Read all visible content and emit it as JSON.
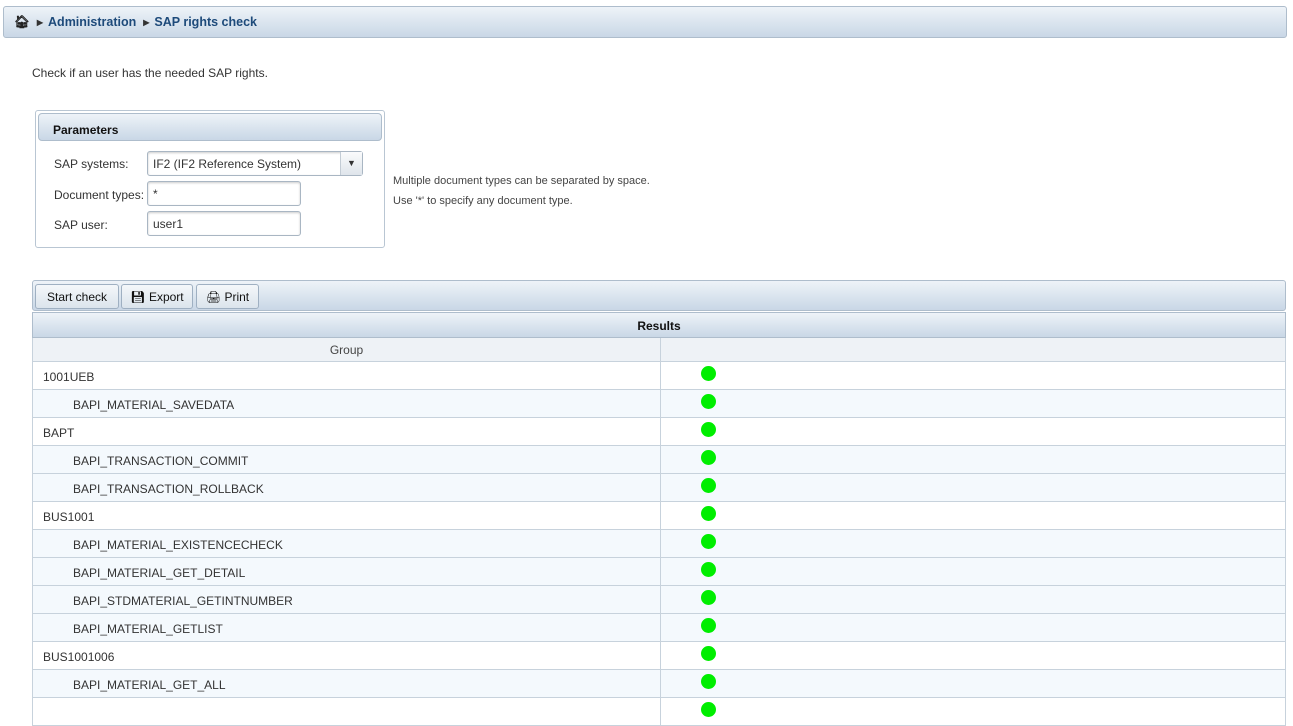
{
  "breadcrumb": {
    "home_icon": "home-icon",
    "items": [
      "Administration",
      "SAP rights check"
    ]
  },
  "description": "Check if an user has the needed SAP rights.",
  "parameters": {
    "title": "Parameters",
    "sap_systems_label": "SAP systems:",
    "sap_systems_value": "IF2 (IF2 Reference System)",
    "document_types_label": "Document types:",
    "document_types_value": "*",
    "sap_user_label": "SAP user:",
    "sap_user_value": "user1",
    "hint1": "Multiple document types can be separated by space.",
    "hint2": "Use '*' to specify any document type."
  },
  "toolbar": {
    "start_check": "Start check",
    "export": "Export",
    "print": "Print"
  },
  "results": {
    "title": "Results",
    "columns": [
      "Group",
      ""
    ],
    "status_color": "#00ee00",
    "rows": [
      {
        "label": "1001UEB",
        "type": "group",
        "status": "ok"
      },
      {
        "label": "BAPI_MATERIAL_SAVEDATA",
        "type": "child",
        "status": "ok"
      },
      {
        "label": "BAPT",
        "type": "group",
        "status": "ok"
      },
      {
        "label": "BAPI_TRANSACTION_COMMIT",
        "type": "child",
        "status": "ok"
      },
      {
        "label": "BAPI_TRANSACTION_ROLLBACK",
        "type": "child",
        "status": "ok"
      },
      {
        "label": "BUS1001",
        "type": "group",
        "status": "ok"
      },
      {
        "label": "BAPI_MATERIAL_EXISTENCECHECK",
        "type": "child",
        "status": "ok"
      },
      {
        "label": "BAPI_MATERIAL_GET_DETAIL",
        "type": "child",
        "status": "ok"
      },
      {
        "label": "BAPI_STDMATERIAL_GETINTNUMBER",
        "type": "child",
        "status": "ok"
      },
      {
        "label": "BAPI_MATERIAL_GETLIST",
        "type": "child",
        "status": "ok"
      },
      {
        "label": "BUS1001006",
        "type": "group",
        "status": "ok"
      },
      {
        "label": "BAPI_MATERIAL_GET_ALL",
        "type": "child",
        "status": "ok"
      },
      {
        "label": "",
        "type": "group",
        "status": "ok"
      }
    ]
  }
}
